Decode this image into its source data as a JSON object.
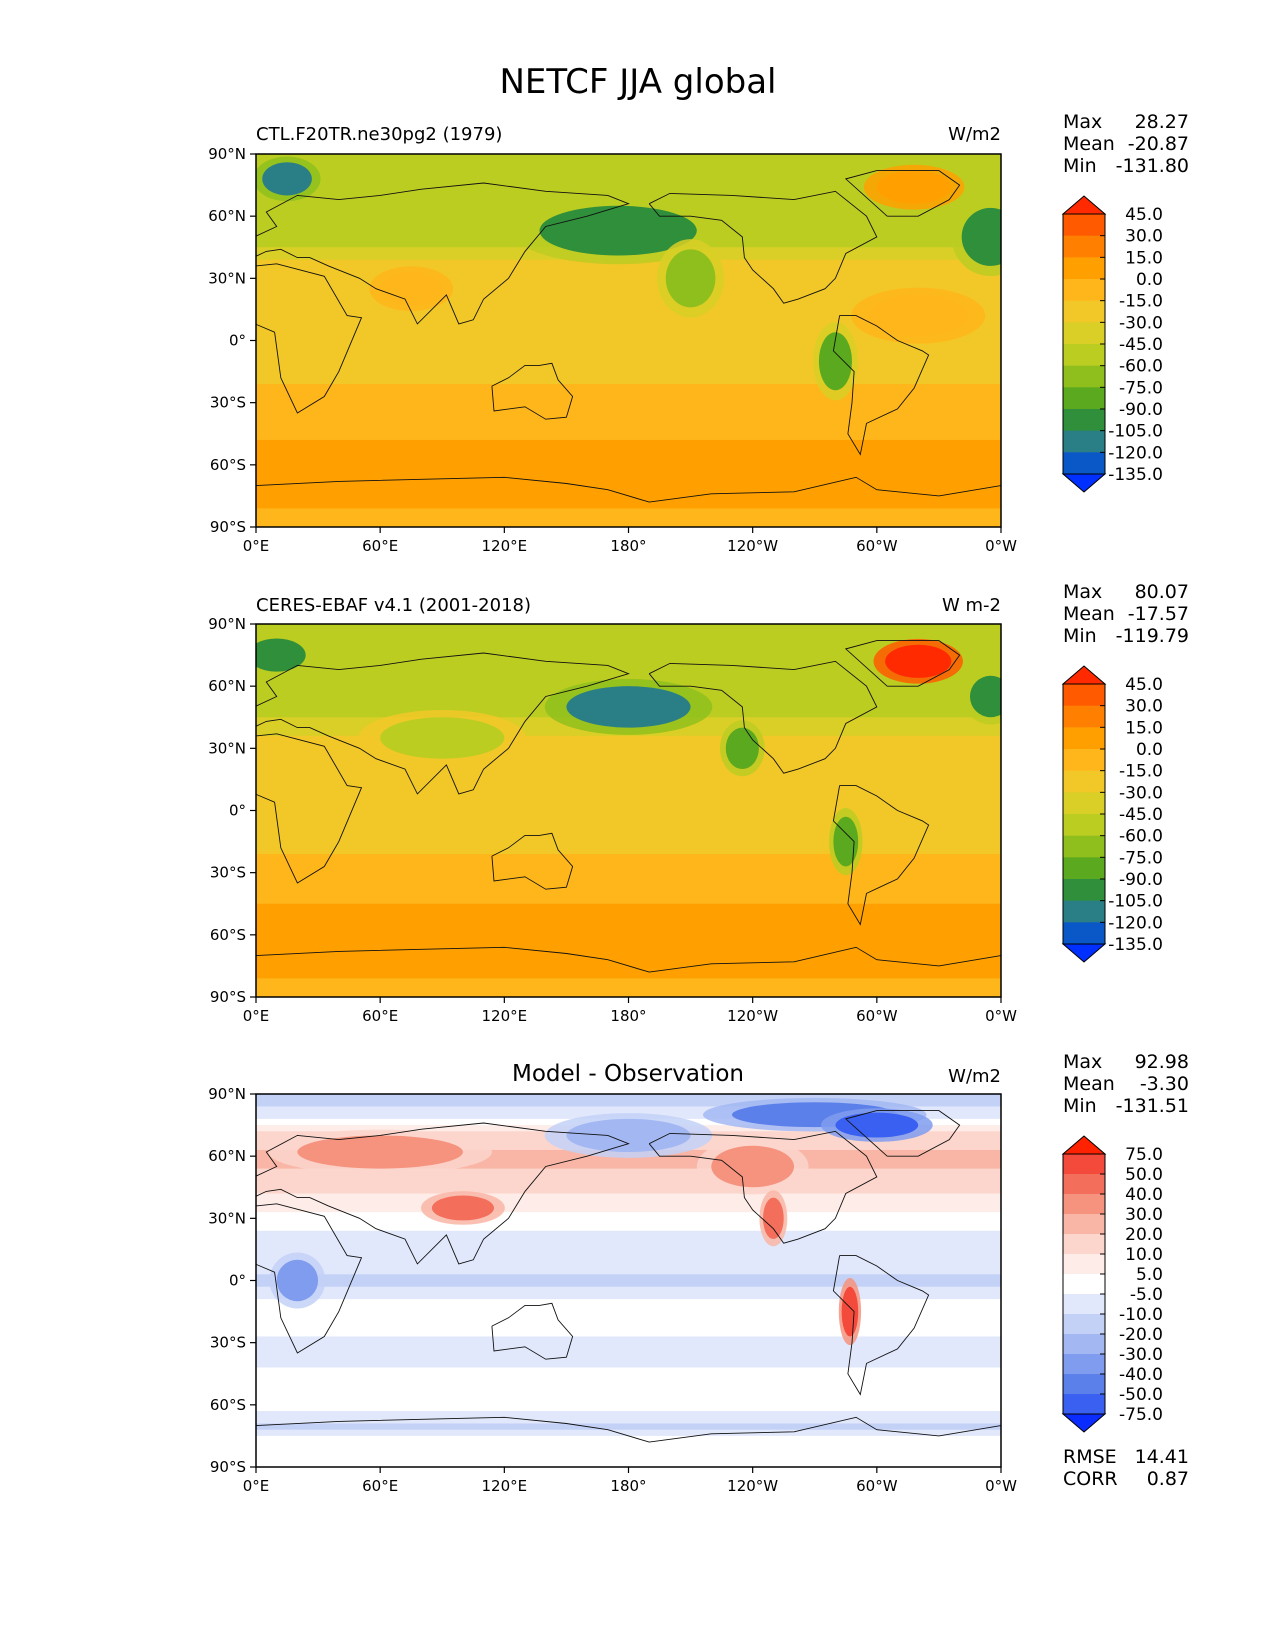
{
  "chart_data": {
    "type": "heatmap",
    "title": "NETCF JJA global",
    "x_ticks": [
      "0°E",
      "60°E",
      "120°E",
      "180°",
      "120°W",
      "60°W",
      "0°W"
    ],
    "y_ticks": [
      "90°N",
      "60°N",
      "30°N",
      "0°",
      "30°S",
      "60°S",
      "90°S"
    ],
    "xlim": [
      0,
      360
    ],
    "ylim": [
      -90,
      90
    ],
    "panels": [
      {
        "id": "model",
        "left_title": "CTL.F20TR.ne30pg2 (1979)",
        "center_title": "",
        "units": "W/m2",
        "stats": [
          {
            "label": "Max",
            "value": "28.27"
          },
          {
            "label": "Mean",
            "value": "-20.87"
          },
          {
            "label": "Min",
            "value": "-131.80"
          }
        ],
        "colorbar": {
          "levels": [
            "45.0",
            "30.0",
            "15.0",
            "0.0",
            "-15.0",
            "-30.0",
            "-45.0",
            "-60.0",
            "-75.0",
            "-90.0",
            "-105.0",
            "-120.0",
            "-135.0"
          ],
          "colors": [
            "#ff2a00",
            "#ff5a00",
            "#ff8000",
            "#ffa000",
            "#ffb61a",
            "#f2c828",
            "#d9cf26",
            "#bccd22",
            "#8fbf1c",
            "#5aa91e",
            "#2f8f3a",
            "#2a7f86",
            "#0a58c8",
            "#0030ff"
          ]
        },
        "zonal_profile": [
          {
            "lat": 90,
            "v": -60
          },
          {
            "lat": 80,
            "v": -50
          },
          {
            "lat": 70,
            "v": -45
          },
          {
            "lat": 60,
            "v": -55
          },
          {
            "lat": 50,
            "v": -55
          },
          {
            "lat": 40,
            "v": -30
          },
          {
            "lat": 30,
            "v": -15
          },
          {
            "lat": 20,
            "v": -20
          },
          {
            "lat": 10,
            "v": -30
          },
          {
            "lat": 0,
            "v": -25
          },
          {
            "lat": -10,
            "v": -20
          },
          {
            "lat": -20,
            "v": -15
          },
          {
            "lat": -30,
            "v": -15
          },
          {
            "lat": -40,
            "v": -10
          },
          {
            "lat": -50,
            "v": 5
          },
          {
            "lat": -60,
            "v": 10
          },
          {
            "lat": -70,
            "v": 12
          },
          {
            "lat": -80,
            "v": 0
          },
          {
            "lat": -90,
            "v": -5
          }
        ],
        "features": [
          {
            "lon": 175,
            "lat": 53,
            "rx": 38,
            "ry": 12,
            "v": -100
          },
          {
            "lon": 210,
            "lat": 30,
            "rx": 12,
            "ry": 14,
            "v": -75
          },
          {
            "lon": 280,
            "lat": -10,
            "rx": 8,
            "ry": 14,
            "v": -80
          },
          {
            "lon": 355,
            "lat": 50,
            "rx": 14,
            "ry": 14,
            "v": -105
          },
          {
            "lon": 15,
            "lat": 78,
            "rx": 12,
            "ry": 8,
            "v": -120
          },
          {
            "lon": 318,
            "lat": 74,
            "rx": 18,
            "ry": 8,
            "v": 5
          },
          {
            "lon": 320,
            "lat": 12,
            "rx": 24,
            "ry": 10,
            "v": -5
          },
          {
            "lon": 75,
            "lat": 25,
            "rx": 15,
            "ry": 8,
            "v": -5
          }
        ]
      },
      {
        "id": "obs",
        "left_title": "CERES-EBAF v4.1 (2001-2018)",
        "center_title": "",
        "units": "W m-2",
        "stats": [
          {
            "label": "Max",
            "value": "80.07"
          },
          {
            "label": "Mean",
            "value": "-17.57"
          },
          {
            "label": "Min",
            "value": "-119.79"
          }
        ],
        "colorbar": {
          "levels": [
            "45.0",
            "30.0",
            "15.0",
            "0.0",
            "-15.0",
            "-30.0",
            "-45.0",
            "-60.0",
            "-75.0",
            "-90.0",
            "-105.0",
            "-120.0",
            "-135.0"
          ],
          "colors": [
            "#ff2a00",
            "#ff5a00",
            "#ff8000",
            "#ffa000",
            "#ffb61a",
            "#f2c828",
            "#d9cf26",
            "#bccd22",
            "#8fbf1c",
            "#5aa91e",
            "#2f8f3a",
            "#2a7f86",
            "#0a58c8",
            "#0030ff"
          ]
        },
        "zonal_profile": [
          {
            "lat": 90,
            "v": -45
          },
          {
            "lat": 80,
            "v": -50
          },
          {
            "lat": 70,
            "v": -55
          },
          {
            "lat": 60,
            "v": -60
          },
          {
            "lat": 50,
            "v": -55
          },
          {
            "lat": 40,
            "v": -35
          },
          {
            "lat": 30,
            "v": -20
          },
          {
            "lat": 20,
            "v": -18
          },
          {
            "lat": 10,
            "v": -25
          },
          {
            "lat": 0,
            "v": -22
          },
          {
            "lat": -10,
            "v": -18
          },
          {
            "lat": -20,
            "v": -15
          },
          {
            "lat": -30,
            "v": -12
          },
          {
            "lat": -40,
            "v": -5
          },
          {
            "lat": -50,
            "v": 5
          },
          {
            "lat": -60,
            "v": 12
          },
          {
            "lat": -70,
            "v": 10
          },
          {
            "lat": -80,
            "v": 0
          },
          {
            "lat": -90,
            "v": -5
          }
        ],
        "features": [
          {
            "lon": 180,
            "lat": 50,
            "rx": 30,
            "ry": 10,
            "v": -110
          },
          {
            "lon": 235,
            "lat": 30,
            "rx": 8,
            "ry": 10,
            "v": -85
          },
          {
            "lon": 285,
            "lat": -15,
            "rx": 6,
            "ry": 12,
            "v": -85
          },
          {
            "lon": 10,
            "lat": 75,
            "rx": 14,
            "ry": 8,
            "v": -100
          },
          {
            "lon": 320,
            "lat": 72,
            "rx": 16,
            "ry": 8,
            "v": 55
          },
          {
            "lon": 90,
            "lat": 35,
            "rx": 30,
            "ry": 10,
            "v": -50
          },
          {
            "lon": 355,
            "lat": 55,
            "rx": 10,
            "ry": 10,
            "v": -95
          }
        ]
      },
      {
        "id": "diff",
        "left_title": "",
        "center_title": "Model - Observation",
        "units": "W/m2",
        "stats": [
          {
            "label": "Max",
            "value": "92.98"
          },
          {
            "label": "Mean",
            "value": "-3.30"
          },
          {
            "label": "Min",
            "value": "-131.51"
          }
        ],
        "colorbar": {
          "levels": [
            "75.0",
            "50.0",
            "40.0",
            "30.0",
            "20.0",
            "10.0",
            "5.0",
            "-5.0",
            "-10.0",
            "-20.0",
            "-30.0",
            "-40.0",
            "-50.0",
            "-75.0"
          ],
          "colors": [
            "#ff2200",
            "#f44a3c",
            "#f46e5c",
            "#f6937e",
            "#f9b6a6",
            "#fcd6cc",
            "#feece8",
            "#ffffff",
            "#e1e8fb",
            "#c3d1f7",
            "#a3b8f3",
            "#7f9cee",
            "#5c80ea",
            "#3a60f2",
            "#0a2cff"
          ]
        },
        "zonal_profile": [
          {
            "lat": 90,
            "v": -12
          },
          {
            "lat": 80,
            "v": -8
          },
          {
            "lat": 70,
            "v": 12
          },
          {
            "lat": 60,
            "v": 22
          },
          {
            "lat": 50,
            "v": 18
          },
          {
            "lat": 40,
            "v": 8
          },
          {
            "lat": 30,
            "v": 3
          },
          {
            "lat": 20,
            "v": -8
          },
          {
            "lat": 10,
            "v": -6
          },
          {
            "lat": 0,
            "v": -12
          },
          {
            "lat": -10,
            "v": -4
          },
          {
            "lat": -20,
            "v": 0
          },
          {
            "lat": -30,
            "v": -8
          },
          {
            "lat": -40,
            "v": -6
          },
          {
            "lat": -50,
            "v": 0
          },
          {
            "lat": -60,
            "v": -3
          },
          {
            "lat": -70,
            "v": -12
          },
          {
            "lat": -80,
            "v": 2
          },
          {
            "lat": -90,
            "v": 0
          }
        ],
        "features": [
          {
            "lon": 60,
            "lat": 62,
            "rx": 40,
            "ry": 8,
            "v": 35
          },
          {
            "lon": 100,
            "lat": 35,
            "rx": 15,
            "ry": 6,
            "v": 40
          },
          {
            "lon": 240,
            "lat": 55,
            "rx": 20,
            "ry": 10,
            "v": 30
          },
          {
            "lon": 287,
            "lat": -15,
            "rx": 4,
            "ry": 12,
            "v": 60
          },
          {
            "lon": 250,
            "lat": 30,
            "rx": 5,
            "ry": 10,
            "v": 45
          },
          {
            "lon": 270,
            "lat": 80,
            "rx": 40,
            "ry": 6,
            "v": -50
          },
          {
            "lon": 180,
            "lat": 70,
            "rx": 30,
            "ry": 8,
            "v": -30
          },
          {
            "lon": 20,
            "lat": 0,
            "rx": 10,
            "ry": 10,
            "v": -35
          },
          {
            "lon": 300,
            "lat": 75,
            "rx": 20,
            "ry": 6,
            "v": -60
          }
        ]
      }
    ],
    "diff_metrics": [
      {
        "label": "RMSE",
        "value": "14.41"
      },
      {
        "label": "CORR",
        "value": "0.87"
      }
    ]
  }
}
